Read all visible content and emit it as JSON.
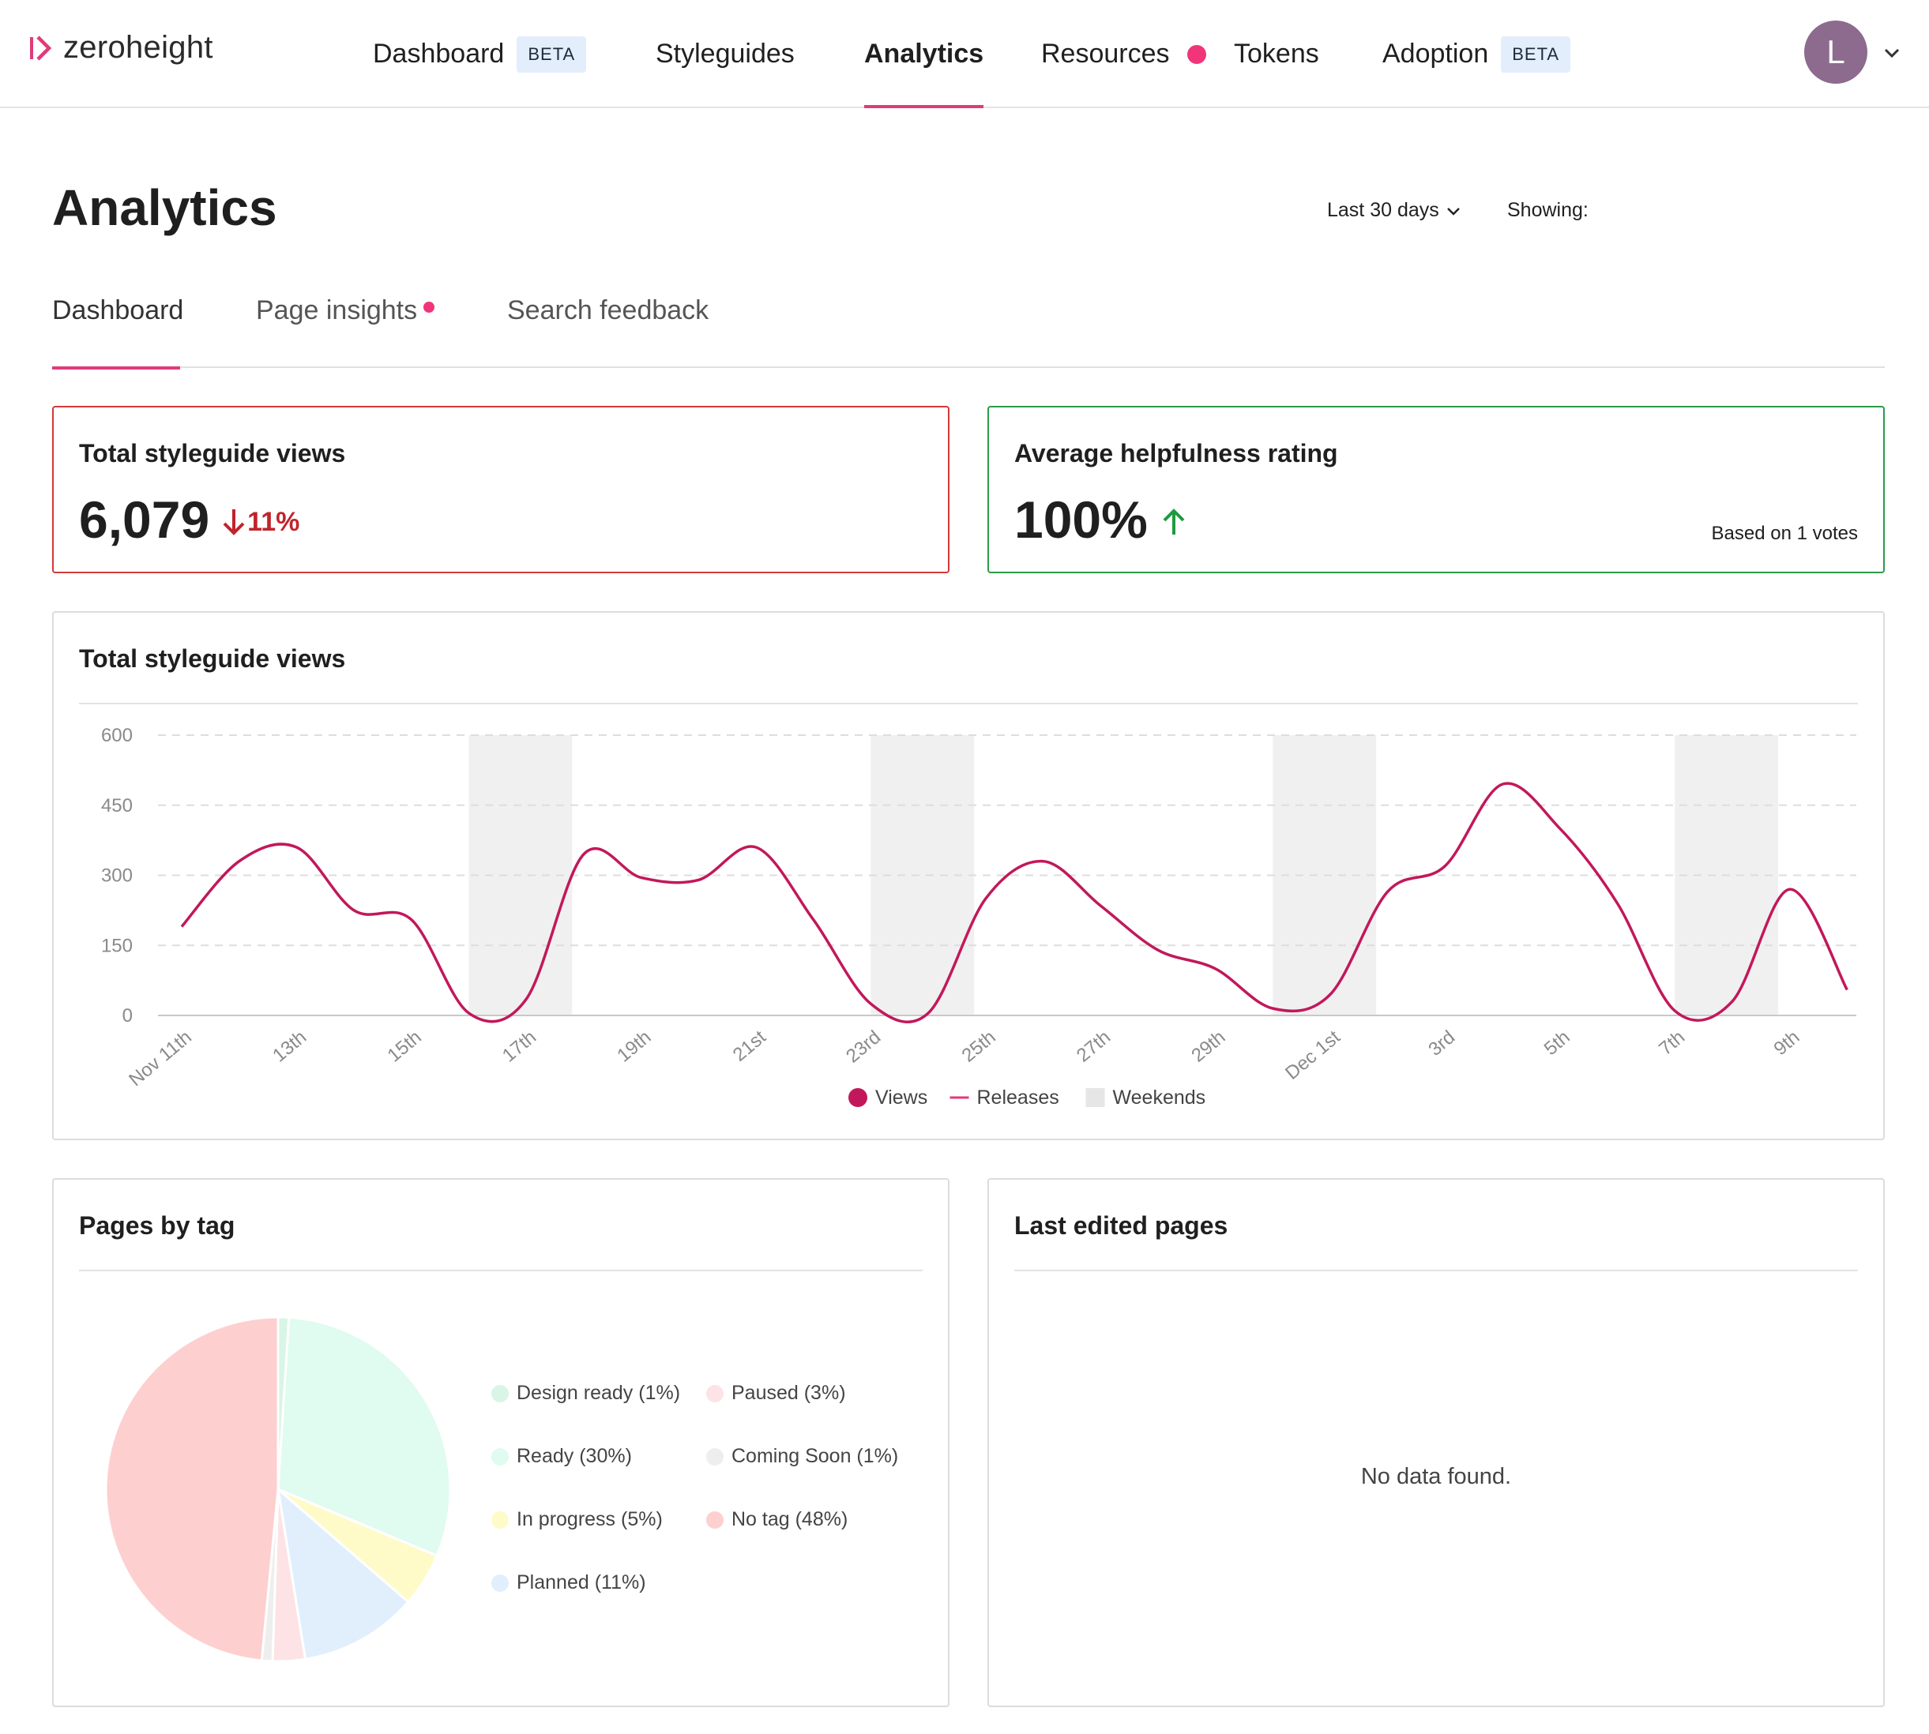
{
  "brand": {
    "name": "zeroheight",
    "accent": "#e23a7b"
  },
  "nav": {
    "items": [
      {
        "label": "Dashboard",
        "badge": "BETA"
      },
      {
        "label": "Styleguides"
      },
      {
        "label": "Analytics",
        "active": true
      },
      {
        "label": "Resources",
        "notification": true
      },
      {
        "label": "Tokens"
      },
      {
        "label": "Adoption",
        "badge": "BETA"
      }
    ],
    "avatar_initial": "L"
  },
  "page": {
    "title": "Analytics",
    "range": "Last 30 days",
    "showing_label": "Showing:"
  },
  "subtabs": [
    {
      "label": "Dashboard",
      "active": true
    },
    {
      "label": "Page insights",
      "notification": true
    },
    {
      "label": "Search feedback"
    }
  ],
  "stats": {
    "views": {
      "title": "Total styleguide views",
      "value": "6,079",
      "delta": "11%",
      "direction": "down",
      "color": "#c0242c"
    },
    "helpfulness": {
      "title": "Average helpfulness rating",
      "value": "100%",
      "direction": "up",
      "note": "Based on 1 votes",
      "color": "#1e9a3e"
    }
  },
  "views_chart": {
    "title": "Total styleguide views",
    "chart_data": {
      "type": "line",
      "ylim": [
        0,
        600
      ],
      "yticks": [
        "0",
        "150",
        "300",
        "450",
        "600"
      ],
      "x_tick_labels": [
        "Nov 11th",
        "13th",
        "15th",
        "17th",
        "19th",
        "21st",
        "23rd",
        "25th",
        "27th",
        "29th",
        "Dec 1st",
        "3rd",
        "5th",
        "7th",
        "9th"
      ],
      "days": [
        "Nov 11th",
        "Nov 12th",
        "Nov 13th",
        "Nov 14th",
        "Nov 15th",
        "Nov 16th",
        "Nov 17th",
        "Nov 18th",
        "Nov 19th",
        "Nov 20th",
        "Nov 21st",
        "Nov 22nd",
        "Nov 23rd",
        "Nov 24th",
        "Nov 25th",
        "Nov 26th",
        "Nov 27th",
        "Nov 28th",
        "Nov 29th",
        "Nov 30th",
        "Dec 1st",
        "Dec 2nd",
        "Dec 3rd",
        "Dec 4th",
        "Dec 5th",
        "Dec 6th",
        "Dec 7th",
        "Dec 8th",
        "Dec 9th",
        "Dec 10th"
      ],
      "series": [
        {
          "name": "Views",
          "color": "#c2185b",
          "values": [
            190,
            330,
            360,
            225,
            205,
            5,
            35,
            345,
            295,
            290,
            360,
            205,
            25,
            5,
            250,
            330,
            235,
            140,
            100,
            15,
            45,
            265,
            320,
            495,
            400,
            240,
            10,
            30,
            270,
            55
          ]
        }
      ],
      "weekends": [
        [
          "Nov 16th",
          "Nov 17th"
        ],
        [
          "Nov 23rd",
          "Nov 24th"
        ],
        [
          "Nov 30th",
          "Dec 1st"
        ],
        [
          "Dec 7th",
          "Dec 8th"
        ]
      ],
      "legend": [
        {
          "label": "Views",
          "kind": "dot",
          "color": "#c2185b"
        },
        {
          "label": "Releases",
          "kind": "line",
          "color": "#e23a7b"
        },
        {
          "label": "Weekends",
          "kind": "square",
          "color": "#e6e6e6"
        }
      ],
      "grid": true
    }
  },
  "pages_by_tag": {
    "title": "Pages by tag",
    "chart_data": {
      "type": "pie",
      "slices": [
        {
          "label": "Design ready",
          "value": 1,
          "legend": "Design ready (1%)",
          "color": "#d8f5e6"
        },
        {
          "label": "Ready",
          "value": 30,
          "legend": "Ready (30%)",
          "color": "#e0fbef"
        },
        {
          "label": "In progress",
          "value": 5,
          "legend": "In progress (5%)",
          "color": "#fefbc8"
        },
        {
          "label": "Planned",
          "value": 11,
          "legend": "Planned (11%)",
          "color": "#e1effd"
        },
        {
          "label": "Paused",
          "value": 3,
          "legend": "Paused (3%)",
          "color": "#fde3e5"
        },
        {
          "label": "Coming Soon",
          "value": 1,
          "legend": "Coming Soon (1%)",
          "color": "#eeeeee"
        },
        {
          "label": "No tag",
          "value": 48,
          "legend": "No tag (48%)",
          "color": "#fecfcf"
        }
      ]
    }
  },
  "last_edited": {
    "title": "Last edited pages",
    "empty": "No data found."
  }
}
